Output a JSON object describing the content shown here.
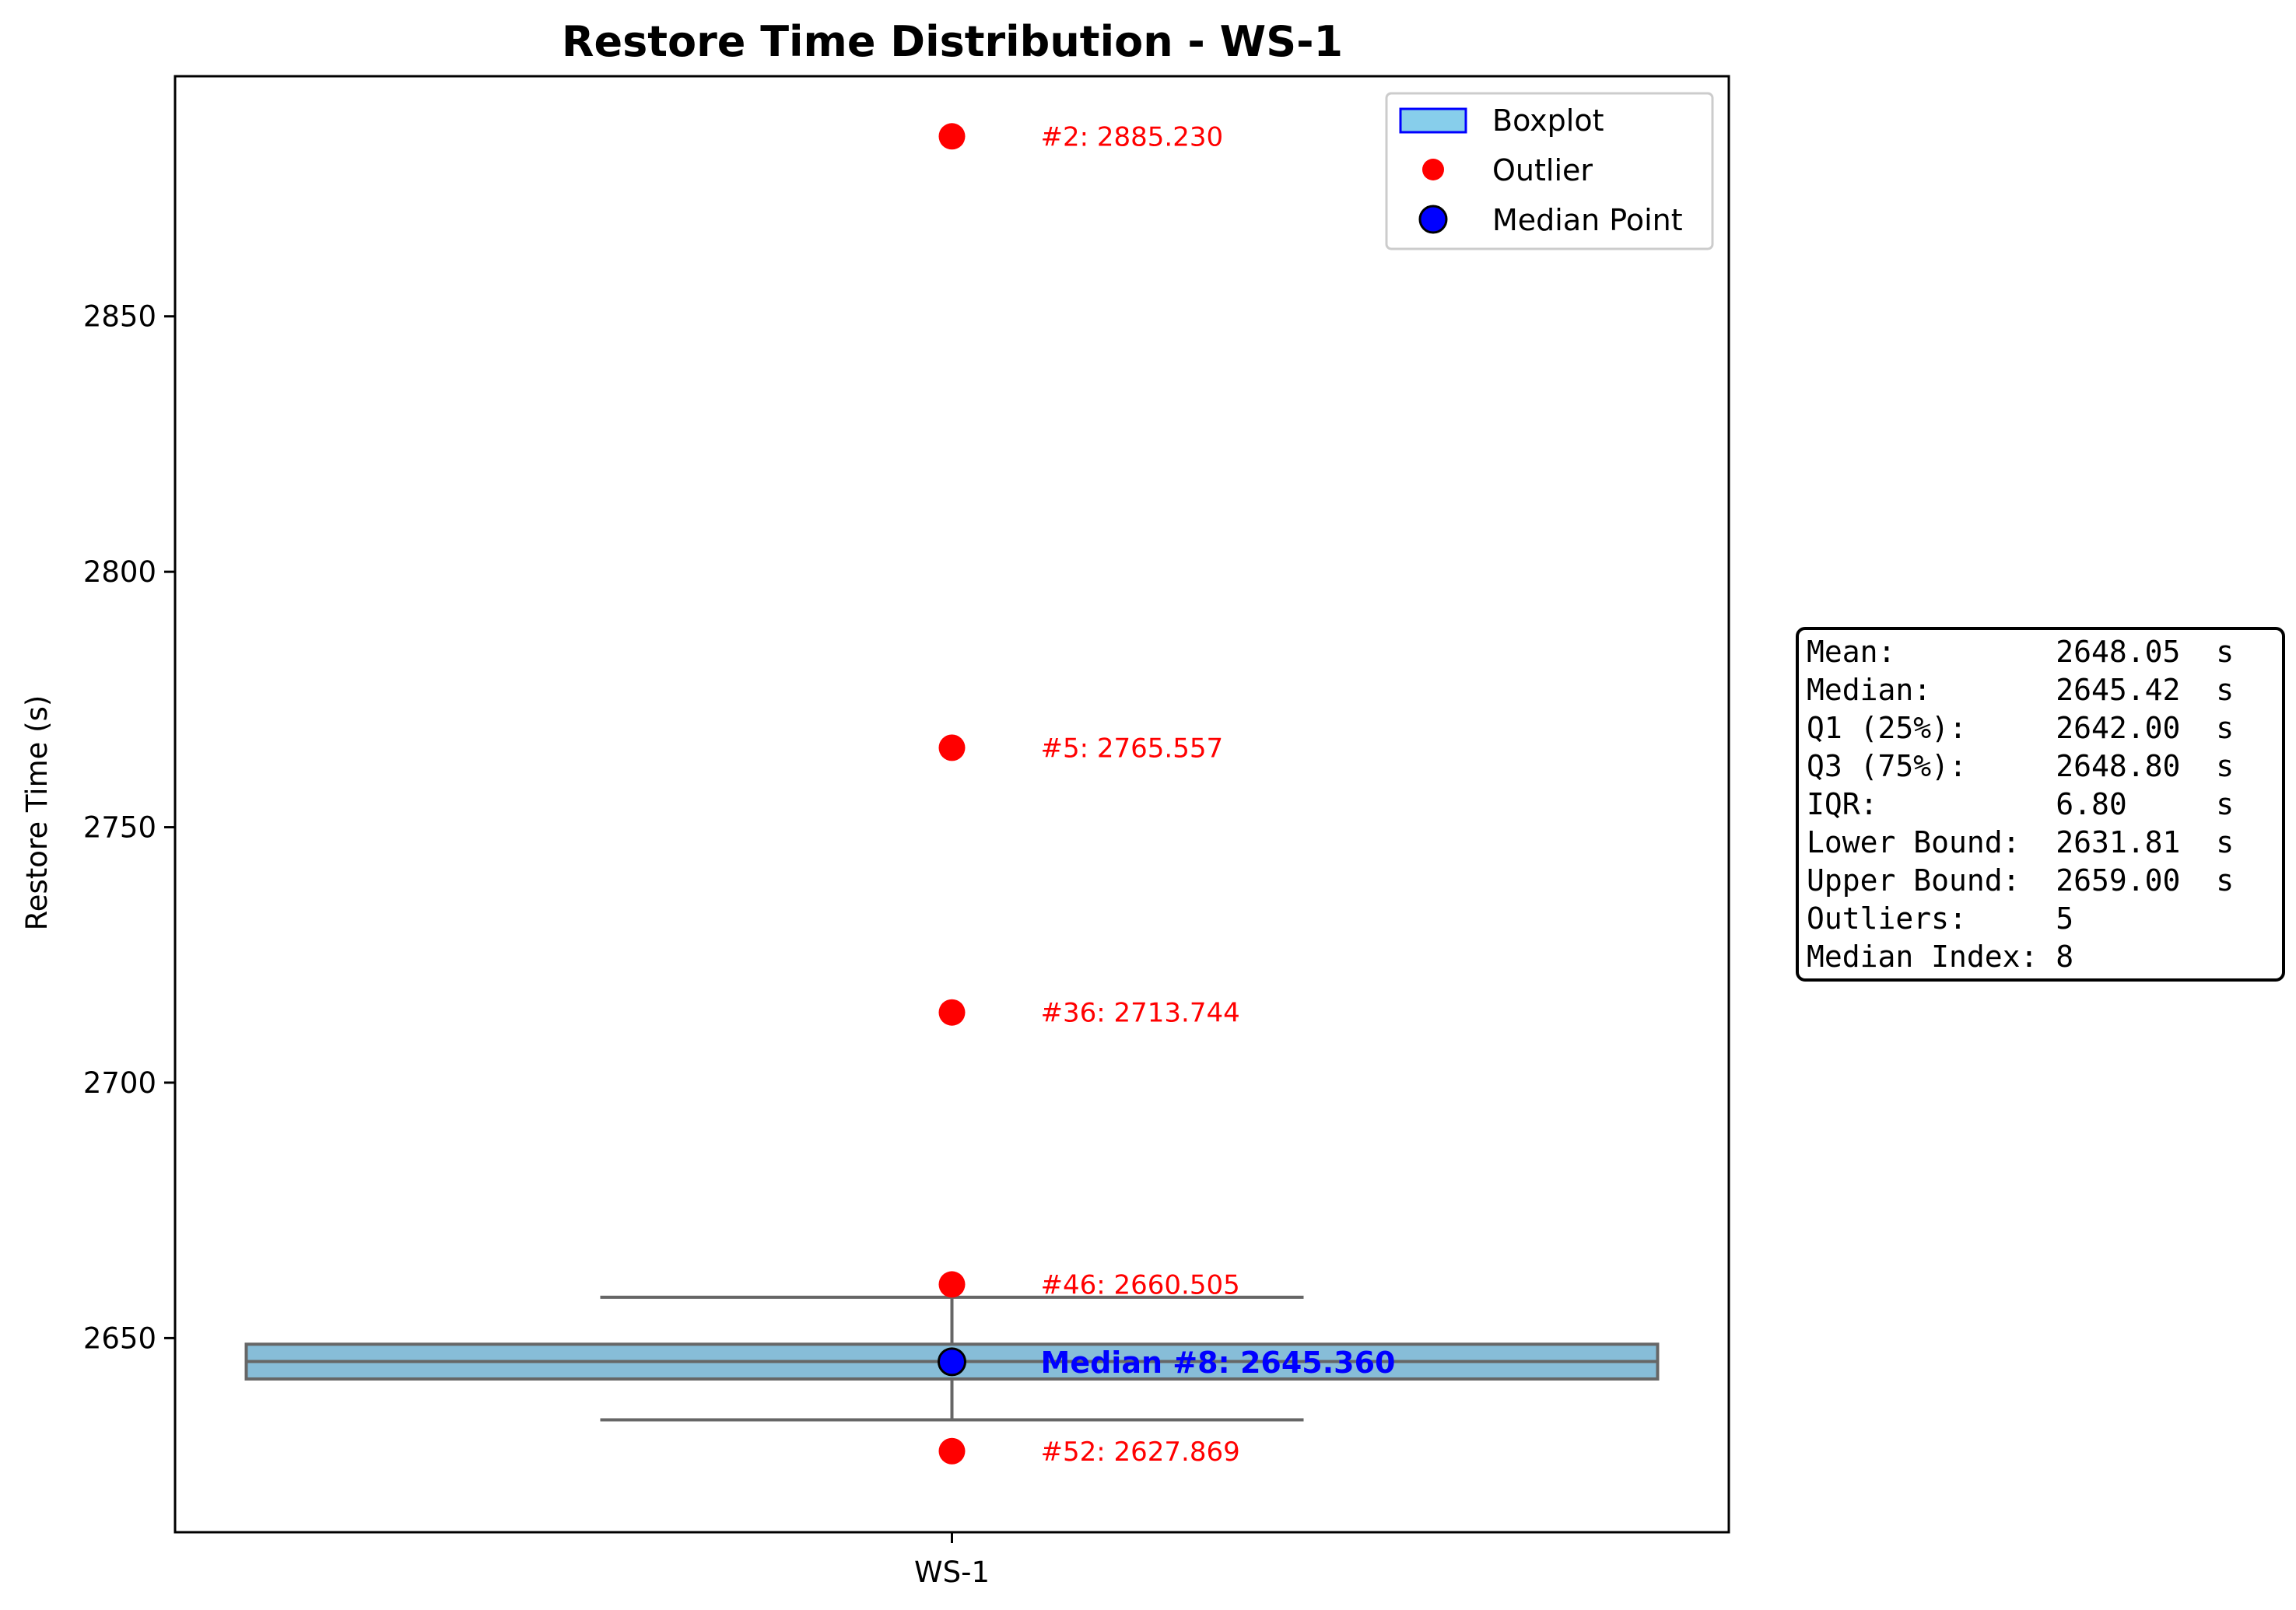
{
  "chart_data": {
    "type": "boxplot",
    "title": "Restore Time Distribution - WS-1",
    "ylabel": "Restore Time (s)",
    "xlabel": "",
    "categories": [
      "WS-1"
    ],
    "ylim": [
      2612,
      2897
    ],
    "yticks": [
      2650,
      2700,
      2750,
      2800,
      2850
    ],
    "grid": false,
    "box": {
      "q1": 2642.0,
      "median": 2645.42,
      "q3": 2648.8,
      "whisker_low": 2634.0,
      "whisker_high": 2658.0,
      "color": "#87bdd8"
    },
    "outliers": [
      {
        "label": "#2: 2885.230",
        "value": 2885.23
      },
      {
        "label": "#5: 2765.557",
        "value": 2765.557
      },
      {
        "label": "#36: 2713.744",
        "value": 2713.744
      },
      {
        "label": "#46: 2660.505",
        "value": 2660.505
      },
      {
        "label": "#52: 2627.869",
        "value": 2627.869
      }
    ],
    "median_point": {
      "label": "Median #8: 2645.360",
      "value": 2645.36
    },
    "legend": {
      "placement": "top-right",
      "entries": [
        "Boxplot",
        "Outlier",
        "Median Point"
      ]
    },
    "stats_box": [
      "Mean:         2648.05  s",
      "Median:       2645.42  s",
      "Q1 (25%):     2642.00  s",
      "Q3 (75%):     2648.80  s",
      "IQR:          6.80     s",
      "Lower Bound:  2631.81  s",
      "Upper Bound:  2659.00  s",
      "Outliers:     5",
      "Median Index: 8"
    ],
    "colors": {
      "outlier": "#ff0000",
      "median_point": "#0000ff",
      "box_fill": "#87bdd8",
      "box_edge": "#666666",
      "legend_box_edge": "#0000ff",
      "legend_box_fill": "#87ceeb"
    }
  }
}
